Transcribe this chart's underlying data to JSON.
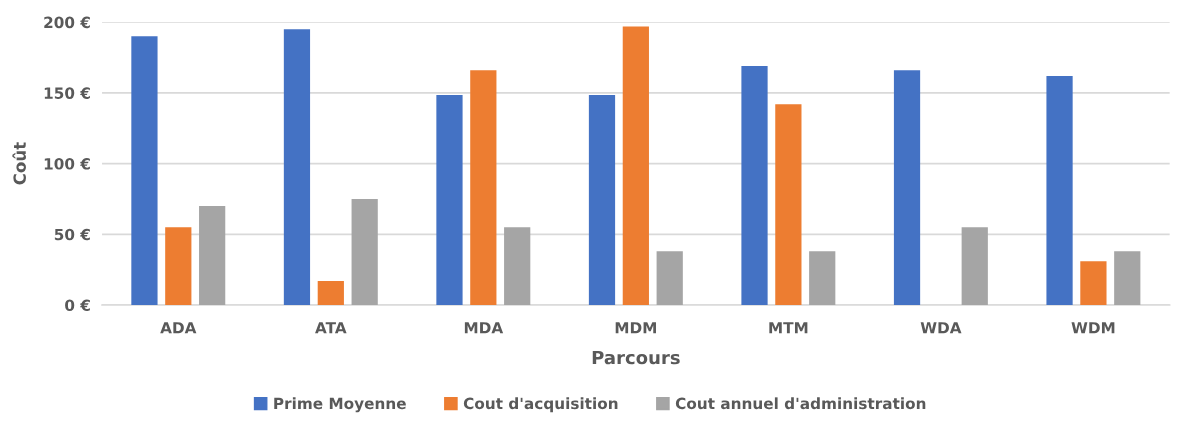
{
  "chart_data": {
    "type": "bar",
    "categories": [
      "ADA",
      "ATA",
      "MDA",
      "MDM",
      "MTM",
      "WDA",
      "WDM"
    ],
    "series": [
      {
        "name": "Prime Moyenne",
        "color": "#4472c4",
        "values": [
          190,
          195,
          148.5,
          148.5,
          169,
          166,
          162
        ]
      },
      {
        "name": "Cout d'acquisition",
        "color": "#ed7d31",
        "values": [
          55,
          17,
          166,
          197,
          142,
          null,
          31
        ]
      },
      {
        "name": "Cout annuel d'administration",
        "color": "#a5a5a5",
        "values": [
          70,
          75,
          55,
          38,
          38,
          55,
          38
        ]
      }
    ],
    "xlabel": "Parcours",
    "ylabel": "Coût",
    "ylim": [
      0,
      200
    ],
    "yticks": [
      {
        "value": 0,
        "label": "0 €"
      },
      {
        "value": 50,
        "label": "50 €"
      },
      {
        "value": 100,
        "label": "100 €"
      },
      {
        "value": 150,
        "label": "150 €"
      },
      {
        "value": 200,
        "label": "200 €"
      }
    ],
    "grid": "y",
    "legend": "bottom"
  }
}
